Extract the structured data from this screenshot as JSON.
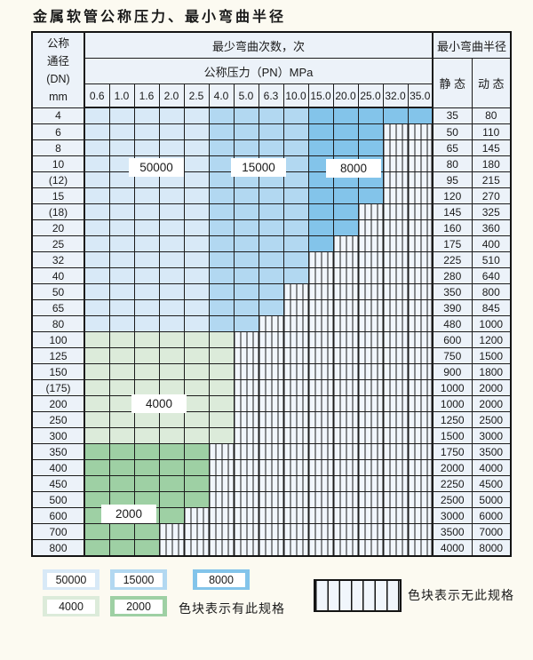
{
  "title": "金属软管公称压力、最小弯曲半径",
  "table": {
    "dn_header_lines": [
      "公称",
      "通径",
      "(DN)",
      "mm"
    ],
    "cycles_header": "最少弯曲次数，次",
    "pressure_header": "公称压力（PN）MPa",
    "radius_header": "最小弯曲半径",
    "static_header": "静 态",
    "dynamic_header": "动 态",
    "pressures": [
      "0.6",
      "1.0",
      "1.6",
      "2.0",
      "2.5",
      "4.0",
      "5.0",
      "6.3",
      "10.0",
      "15.0",
      "20.0",
      "25.0",
      "32.0",
      "35.0"
    ],
    "rows": [
      {
        "dn": "4",
        "colored_through": "35.0",
        "static": "35",
        "dynamic": "80"
      },
      {
        "dn": "6",
        "colored_through": "25.0",
        "static": "50",
        "dynamic": "110"
      },
      {
        "dn": "8",
        "colored_through": "25.0",
        "static": "65",
        "dynamic": "145"
      },
      {
        "dn": "10",
        "colored_through": "25.0",
        "static": "80",
        "dynamic": "180"
      },
      {
        "dn": "(12)",
        "colored_through": "25.0",
        "static": "95",
        "dynamic": "215"
      },
      {
        "dn": "15",
        "colored_through": "25.0",
        "static": "120",
        "dynamic": "270"
      },
      {
        "dn": "(18)",
        "colored_through": "20.0",
        "static": "145",
        "dynamic": "325"
      },
      {
        "dn": "20",
        "colored_through": "20.0",
        "static": "160",
        "dynamic": "360"
      },
      {
        "dn": "25",
        "colored_through": "15.0",
        "static": "175",
        "dynamic": "400"
      },
      {
        "dn": "32",
        "colored_through": "10.0",
        "static": "225",
        "dynamic": "510"
      },
      {
        "dn": "40",
        "colored_through": "10.0",
        "static": "280",
        "dynamic": "640"
      },
      {
        "dn": "50",
        "colored_through": "6.3",
        "static": "350",
        "dynamic": "800"
      },
      {
        "dn": "65",
        "colored_through": "6.3",
        "static": "390",
        "dynamic": "845"
      },
      {
        "dn": "80",
        "colored_through": "5.0",
        "static": "480",
        "dynamic": "1000"
      },
      {
        "dn": "100",
        "colored_through": "4.0",
        "static": "600",
        "dynamic": "1200"
      },
      {
        "dn": "125",
        "colored_through": "4.0",
        "static": "750",
        "dynamic": "1500"
      },
      {
        "dn": "150",
        "colored_through": "4.0",
        "static": "900",
        "dynamic": "1800"
      },
      {
        "dn": "(175)",
        "colored_through": "4.0",
        "static": "1000",
        "dynamic": "2000"
      },
      {
        "dn": "200",
        "colored_through": "4.0",
        "static": "1000",
        "dynamic": "2000"
      },
      {
        "dn": "250",
        "colored_through": "4.0",
        "static": "1250",
        "dynamic": "2500"
      },
      {
        "dn": "300",
        "colored_through": "4.0",
        "static": "1500",
        "dynamic": "3000"
      },
      {
        "dn": "350",
        "colored_through": "2.5",
        "static": "1750",
        "dynamic": "3500"
      },
      {
        "dn": "400",
        "colored_through": "2.5",
        "static": "2000",
        "dynamic": "4000"
      },
      {
        "dn": "450",
        "colored_through": "2.5",
        "static": "2250",
        "dynamic": "4500"
      },
      {
        "dn": "500",
        "colored_through": "2.5",
        "static": "2500",
        "dynamic": "5000"
      },
      {
        "dn": "600",
        "colored_through": "2.0",
        "static": "3000",
        "dynamic": "6000"
      },
      {
        "dn": "700",
        "colored_through": "1.6",
        "static": "3500",
        "dynamic": "7000"
      },
      {
        "dn": "800",
        "colored_through": "1.6",
        "static": "4000",
        "dynamic": "8000"
      }
    ]
  },
  "cycle_zones": {
    "blue_by_column": {
      "50000": [
        "0.6",
        "1.0",
        "1.6",
        "2.0",
        "2.5"
      ],
      "15000": [
        "4.0",
        "5.0",
        "6.3",
        "10.0"
      ],
      "8000": [
        "15.0",
        "20.0",
        "25.0",
        "32.0",
        "35.0"
      ]
    },
    "green_by_row": {
      "4000": [
        "100",
        "125",
        "150",
        "(175)",
        "200",
        "250",
        "300"
      ],
      "2000": [
        "350",
        "400",
        "450",
        "500",
        "600",
        "700",
        "800"
      ]
    }
  },
  "colors": {
    "50000": "#d8e9f7",
    "15000": "#b2d8f1",
    "8000": "#83c4ea",
    "4000": "#dcebda",
    "2000": "#9ed0a4",
    "no_spec_bg": "#f1f6fc"
  },
  "overlay_labels": [
    "50000",
    "15000",
    "8000",
    "4000",
    "2000"
  ],
  "legend": {
    "swatches": [
      "50000",
      "15000",
      "8000",
      "4000",
      "2000"
    ],
    "has_spec_label": "色块表示有此规格",
    "no_spec_label": "色块表示无此规格"
  }
}
